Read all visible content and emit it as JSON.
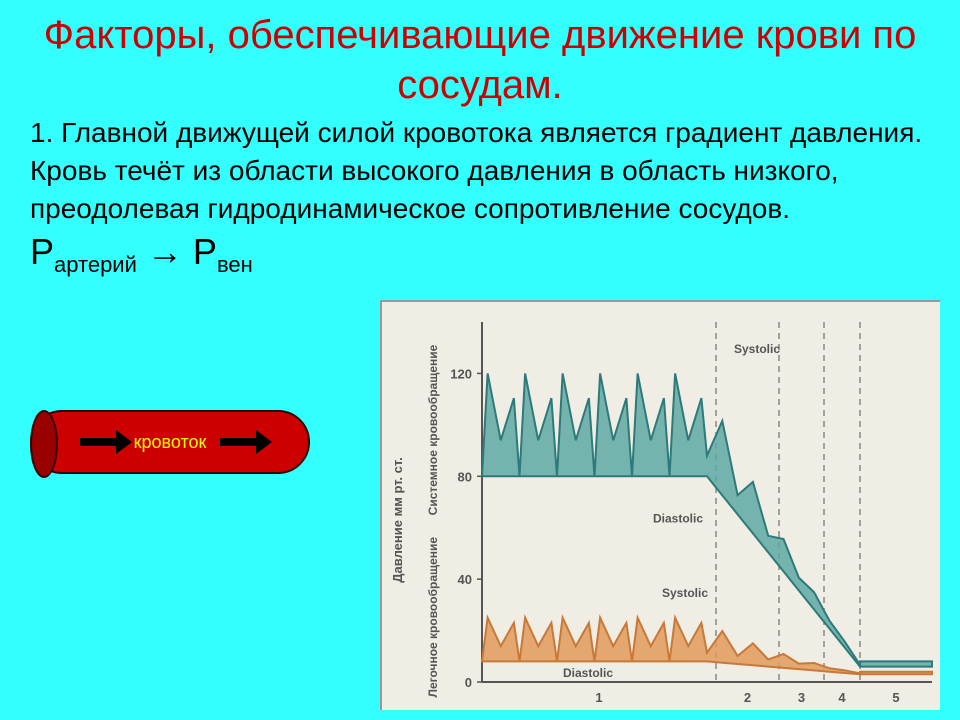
{
  "title": "Факторы, обеспечивающие движение крови по  сосудам.",
  "paragraph": "1. Главной движущей силой кровотока является градиент давления. Кровь течёт из области высокого давления в область низкого, преодолевая гидродинамическое сопротивление сосудов.",
  "formula": {
    "p1": "Р",
    "sub1": "артерий",
    "arrow": " → ",
    "p2": "Р",
    "sub2": "вен"
  },
  "vessel": {
    "label": "кровоток"
  },
  "chart": {
    "type": "line-area",
    "background_color": "#f0ede4",
    "axis_color": "#555555",
    "grid_dash_color": "#888888",
    "y_axis_label": "Давление мм рт. ст.",
    "y_label2_top": "Системное кровообращение",
    "y_label2_bottom": "Легочное кровообращение",
    "ylim": [
      0,
      140
    ],
    "yticks": [
      0,
      40,
      80,
      120
    ],
    "x_sections": [
      1,
      2,
      3,
      4,
      5
    ],
    "vlines_x": [
      0.52,
      0.66,
      0.76,
      0.84
    ],
    "series": [
      {
        "name": "systemic",
        "color": "#2d7a7a",
        "fill": "#5fa8a5",
        "fill_opacity": 0.85,
        "label_top": "Systolic",
        "label_bottom": "Diastolic",
        "pulse_count": 6,
        "systolic_start": 120,
        "diastolic_start": 80,
        "systolic_end": 8,
        "diastolic_end": 6
      },
      {
        "name": "pulmonary",
        "color": "#c87838",
        "fill": "#e09a5a",
        "fill_opacity": 0.85,
        "label_top": "Systolic",
        "label_bottom": "Diastolic",
        "pulse_count": 6,
        "systolic_start": 25,
        "diastolic_start": 8,
        "systolic_end": 4,
        "diastolic_end": 3
      }
    ],
    "label_fontsize": 12,
    "label_color": "#555555",
    "tick_fontsize": 13
  }
}
